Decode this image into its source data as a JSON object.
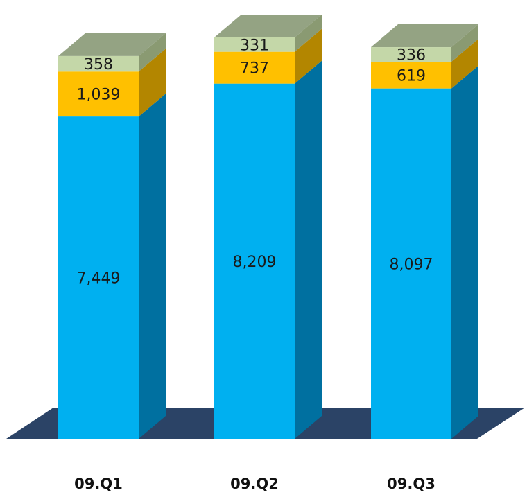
{
  "chart_data": {
    "type": "bar",
    "stacked": true,
    "style": "3d",
    "categories": [
      "09.Q1",
      "09.Q2",
      "09.Q3"
    ],
    "series": [
      {
        "values": [
          7449,
          8209,
          8097
        ],
        "labels": [
          "7,449",
          "8,209",
          "8,097"
        ],
        "color": "#00b0f0",
        "side_color": "#0070a0",
        "top_color": "#33c0f5"
      },
      {
        "values": [
          1039,
          737,
          619
        ],
        "labels": [
          "1,039",
          "737",
          "619"
        ],
        "color": "#ffc000",
        "side_color": "#b38600",
        "top_color": "#ffd24d"
      },
      {
        "values": [
          358,
          331,
          336
        ],
        "labels": [
          "358",
          "331",
          "336"
        ],
        "color": "#c4d7a8",
        "side_color": "#8a9a72",
        "top_color": "#94a383"
      }
    ],
    "title": "",
    "xlabel": "",
    "ylabel": "",
    "ylim": [
      0,
      9277
    ],
    "grid": false,
    "legend": "none",
    "floor_color": "#2b4366"
  }
}
